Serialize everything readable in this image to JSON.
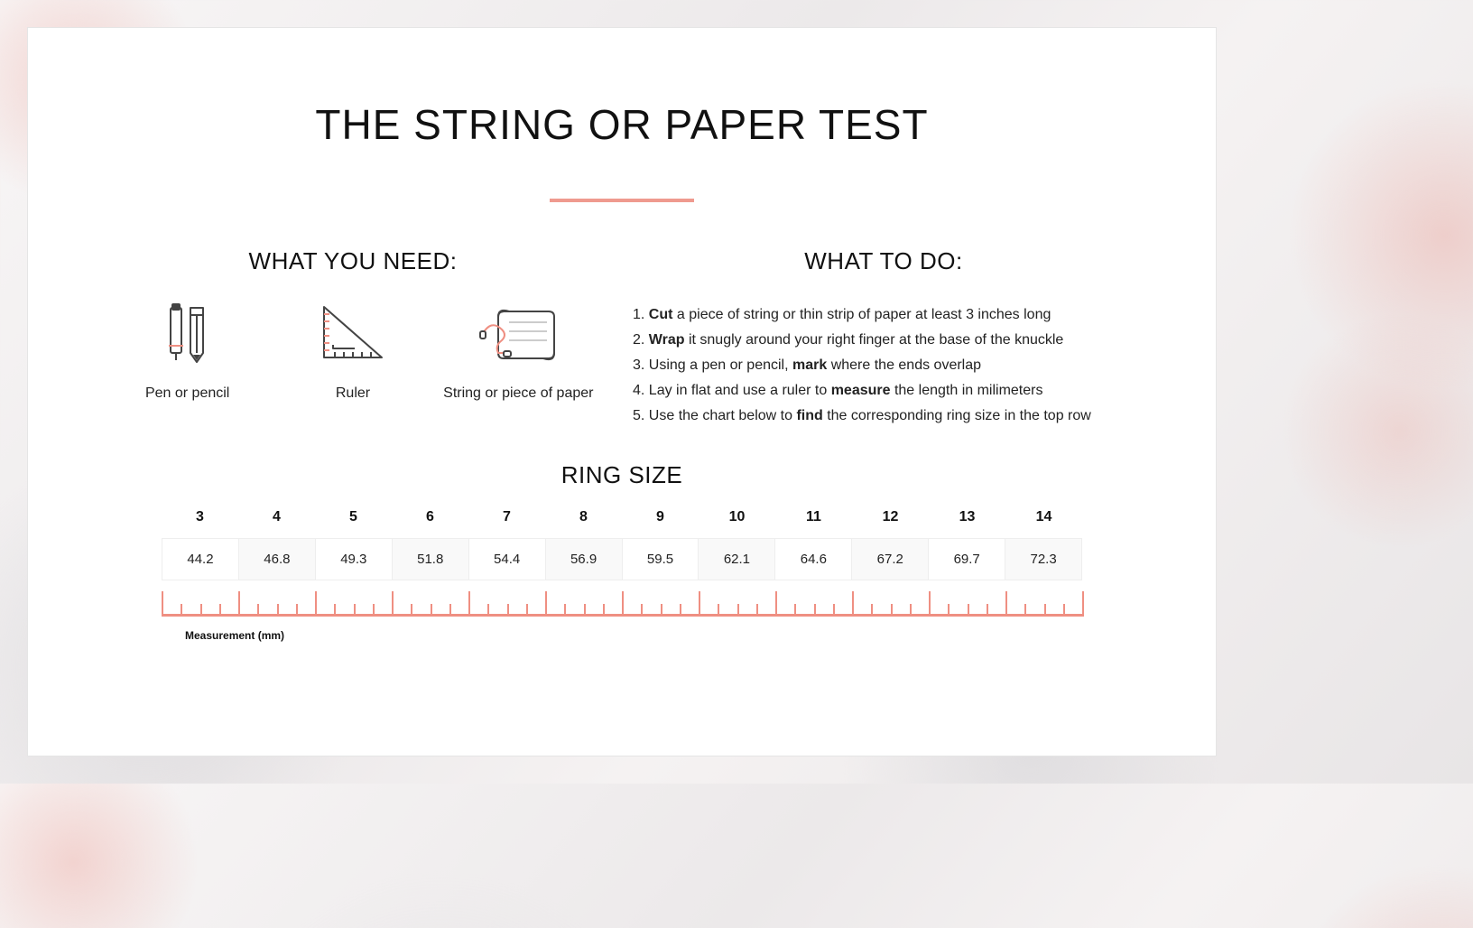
{
  "title": "THE STRING OR PAPER TEST",
  "accent_color": "#ef9a8f",
  "tick_color": "#ef8f82",
  "what_you_need": {
    "heading": "WHAT YOU NEED:",
    "items": [
      {
        "label": "Pen or pencil"
      },
      {
        "label": "Ruler"
      },
      {
        "label": "String or piece of paper"
      }
    ]
  },
  "what_to_do": {
    "heading": "WHAT TO DO:",
    "steps": [
      {
        "n": "1.",
        "before": "",
        "bold": "Cut",
        "after": " a piece of string or thin strip of paper at least 3 inches long"
      },
      {
        "n": "2.",
        "before": "",
        "bold": "Wrap",
        "after": " it snugly around your right finger at the base of the knuckle"
      },
      {
        "n": "3.",
        "before": "Using a pen or pencil, ",
        "bold": "mark",
        "after": " where the ends overlap"
      },
      {
        "n": "4.",
        "before": "Lay in flat and use a ruler to ",
        "bold": "measure",
        "after": " the length in milimeters"
      },
      {
        "n": "5.",
        "before": "Use the chart below to ",
        "bold": "find",
        "after": " the corresponding ring size in the top row"
      }
    ]
  },
  "ring_chart": {
    "heading": "RING SIZE",
    "sizes": [
      "3",
      "4",
      "5",
      "6",
      "7",
      "8",
      "9",
      "10",
      "11",
      "12",
      "13",
      "14"
    ],
    "measurements": [
      "44.2",
      "46.8",
      "49.3",
      "51.8",
      "54.4",
      "56.9",
      "59.5",
      "62.1",
      "64.6",
      "67.2",
      "69.7",
      "72.3"
    ],
    "unit_label": "Measurement (mm)",
    "ruler": {
      "major_tick_height": 28,
      "minor_tick_height": 14,
      "minors_per_cell": 3
    }
  }
}
